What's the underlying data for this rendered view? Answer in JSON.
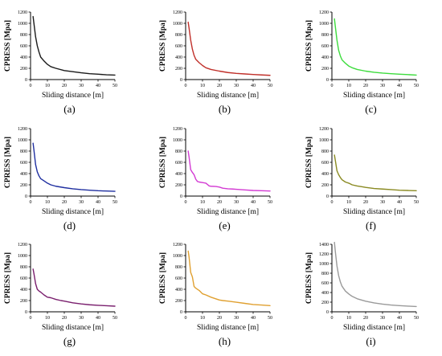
{
  "chart_data": [
    {
      "type": "line",
      "panel_label": "(a)",
      "xlabel": "Sliding distance  [m]",
      "ylabel": "CPRESS  [Mpa]",
      "xlim": [
        0,
        50
      ],
      "ylim": [
        0,
        1200
      ],
      "xticks": [
        0,
        10,
        20,
        30,
        40,
        50
      ],
      "yticks": [
        0,
        200,
        400,
        600,
        800,
        1000,
        1200
      ],
      "series": [
        {
          "color": "#1a1a1a",
          "x": [
            1.5,
            2,
            3,
            4,
            5,
            6,
            8,
            10,
            12,
            15,
            20,
            25,
            30,
            35,
            40,
            45,
            50
          ],
          "values": [
            1120,
            1000,
            760,
            600,
            490,
            400,
            330,
            270,
            230,
            200,
            160,
            140,
            120,
            105,
            95,
            85,
            80
          ]
        }
      ]
    },
    {
      "type": "line",
      "panel_label": "(b)",
      "xlabel": "Sliding distance  [m]",
      "ylabel": "CPRESS  [Mpa]",
      "xlim": [
        0,
        50
      ],
      "ylim": [
        0,
        1200
      ],
      "xticks": [
        0,
        10,
        20,
        30,
        40,
        50
      ],
      "yticks": [
        0,
        200,
        400,
        600,
        800,
        1000,
        1200
      ],
      "series": [
        {
          "color": "#c0302a",
          "x": [
            1.5,
            2,
            3,
            4,
            5,
            6,
            8,
            10,
            12,
            15,
            20,
            25,
            30,
            35,
            40,
            45,
            50
          ],
          "values": [
            1020,
            920,
            700,
            540,
            430,
            360,
            300,
            250,
            210,
            180,
            150,
            125,
            110,
            100,
            90,
            82,
            75
          ]
        }
      ]
    },
    {
      "type": "line",
      "panel_label": "(c)",
      "xlabel": "Sliding distance  [m]",
      "ylabel": "CPRESS  [Mpa]",
      "xlim": [
        0,
        50
      ],
      "ylim": [
        0,
        1200
      ],
      "xticks": [
        0,
        10,
        20,
        30,
        40,
        50
      ],
      "yticks": [
        0,
        200,
        400,
        600,
        800,
        1000,
        1200
      ],
      "series": [
        {
          "color": "#3ddc3d",
          "x": [
            1.5,
            2,
            3,
            4,
            5,
            6,
            8,
            10,
            12,
            15,
            20,
            25,
            30,
            35,
            40,
            45,
            50
          ],
          "values": [
            1080,
            950,
            700,
            520,
            420,
            350,
            290,
            240,
            210,
            180,
            150,
            130,
            115,
            105,
            95,
            88,
            80
          ]
        }
      ]
    },
    {
      "type": "line",
      "panel_label": "(d)",
      "xlabel": "Sliding distance  [m]",
      "ylabel": "CPRESS  [Mpa]",
      "xlim": [
        0,
        50
      ],
      "ylim": [
        0,
        1200
      ],
      "xticks": [
        0,
        10,
        20,
        30,
        40,
        50
      ],
      "yticks": [
        0,
        200,
        400,
        600,
        800,
        1000,
        1200
      ],
      "series": [
        {
          "color": "#1f2fa0",
          "x": [
            1.5,
            2,
            3,
            4,
            5,
            6,
            8,
            10,
            12,
            15,
            20,
            25,
            30,
            35,
            40,
            45,
            50
          ],
          "values": [
            940,
            820,
            560,
            430,
            360,
            310,
            270,
            230,
            200,
            175,
            150,
            130,
            115,
            105,
            95,
            90,
            85
          ]
        }
      ]
    },
    {
      "type": "line",
      "panel_label": "(e)",
      "xlabel": "Sliding distance  [m]",
      "ylabel": "CPRESS  [Mpa]",
      "xlim": [
        0,
        50
      ],
      "ylim": [
        0,
        1200
      ],
      "xticks": [
        0,
        10,
        20,
        30,
        40,
        50
      ],
      "yticks": [
        0,
        200,
        400,
        600,
        800,
        1000,
        1200
      ],
      "series": [
        {
          "color": "#d33bd3",
          "x": [
            1.5,
            2,
            3,
            4,
            5,
            6,
            7,
            8,
            10,
            12,
            14,
            15,
            18,
            20,
            22,
            25,
            28,
            30,
            35,
            40,
            45,
            50
          ],
          "values": [
            800,
            700,
            470,
            420,
            380,
            300,
            260,
            250,
            240,
            230,
            180,
            175,
            170,
            160,
            140,
            130,
            125,
            120,
            110,
            100,
            95,
            90
          ]
        }
      ]
    },
    {
      "type": "line",
      "panel_label": "(f)",
      "xlabel": "Sliding distance  [m]",
      "ylabel": "CPRESS  [Mpa]",
      "xlim": [
        0,
        50
      ],
      "ylim": [
        0,
        1200
      ],
      "xticks": [
        0,
        10,
        20,
        30,
        40,
        50
      ],
      "yticks": [
        0,
        200,
        400,
        600,
        800,
        1000,
        1200
      ],
      "series": [
        {
          "color": "#8a8a22",
          "x": [
            1.5,
            2,
            3,
            4,
            5,
            6,
            8,
            10,
            12,
            15,
            18,
            20,
            25,
            30,
            35,
            40,
            45,
            50
          ],
          "values": [
            730,
            640,
            450,
            380,
            330,
            290,
            250,
            230,
            200,
            180,
            165,
            155,
            135,
            125,
            115,
            105,
            100,
            95
          ]
        }
      ]
    },
    {
      "type": "line",
      "panel_label": "(g)",
      "xlabel": "Sliding distance  [m]",
      "ylabel": "CPRESS  [Mpa]",
      "xlim": [
        0,
        50
      ],
      "ylim": [
        0,
        1200
      ],
      "xticks": [
        0,
        10,
        20,
        30,
        40,
        50
      ],
      "yticks": [
        0,
        200,
        400,
        600,
        800,
        1000,
        1200
      ],
      "series": [
        {
          "color": "#7a1f6e",
          "x": [
            1.5,
            2,
            3,
            4,
            5,
            6,
            8,
            10,
            12,
            15,
            18,
            20,
            25,
            30,
            35,
            40,
            45,
            50
          ],
          "values": [
            760,
            680,
            500,
            400,
            370,
            350,
            300,
            260,
            250,
            220,
            200,
            190,
            160,
            140,
            125,
            115,
            108,
            100
          ]
        }
      ]
    },
    {
      "type": "line",
      "panel_label": "(h)",
      "xlabel": "Sliding distance  [m]",
      "ylabel": "CPRESS  [Mpa]",
      "xlim": [
        0,
        50
      ],
      "ylim": [
        0,
        1200
      ],
      "xticks": [
        0,
        10,
        20,
        30,
        40,
        50
      ],
      "yticks": [
        0,
        200,
        400,
        600,
        800,
        1000,
        1200
      ],
      "series": [
        {
          "color": "#e0a030",
          "x": [
            1.5,
            2,
            3,
            4,
            5,
            6,
            8,
            10,
            12,
            15,
            18,
            20,
            22,
            25,
            30,
            35,
            40,
            45,
            50
          ],
          "values": [
            1080,
            980,
            700,
            620,
            450,
            420,
            380,
            320,
            300,
            260,
            230,
            210,
            200,
            190,
            170,
            150,
            130,
            120,
            110
          ]
        }
      ]
    },
    {
      "type": "line",
      "panel_label": "(i)",
      "xlabel": "Sliding distance  [m]",
      "ylabel": "CPRESS  [Mpa]",
      "xlim": [
        0,
        50
      ],
      "ylim": [
        0,
        1400
      ],
      "xticks": [
        0,
        10,
        20,
        30,
        40,
        50
      ],
      "yticks": [
        0,
        200,
        400,
        600,
        800,
        1000,
        1200,
        1400
      ],
      "series": [
        {
          "color": "#9a9a9a",
          "x": [
            1.5,
            2,
            3,
            4,
            5,
            6,
            8,
            10,
            12,
            15,
            20,
            25,
            30,
            35,
            40,
            45,
            50
          ],
          "values": [
            1440,
            1260,
            950,
            750,
            620,
            530,
            430,
            370,
            320,
            270,
            220,
            185,
            160,
            140,
            128,
            118,
            110
          ]
        }
      ]
    }
  ]
}
